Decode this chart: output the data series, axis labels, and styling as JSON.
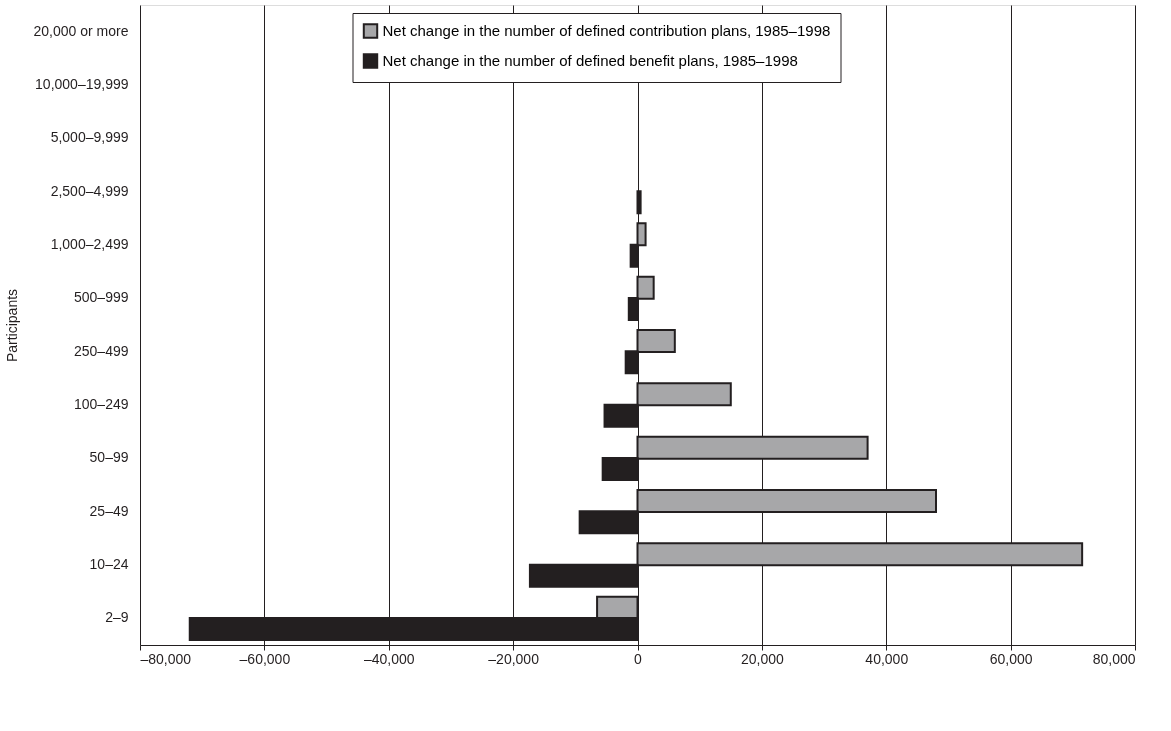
{
  "chart_data": {
    "type": "bar",
    "orientation": "horizontal",
    "ylabel": "Participants",
    "categories": [
      "20,000 or more",
      "10,000–19,999",
      "5,000–9,999",
      "2,500–4,999",
      "1,000–2,499",
      "500–999",
      "250–499",
      "100–249",
      "50–99",
      "25–49",
      "10–24",
      "2–9"
    ],
    "series": [
      {
        "name": "Net change in the number of defined contribution plans, 1985–1998",
        "color": "#a7a7a9",
        "values": [
          null,
          null,
          null,
          null,
          1300,
          2600,
          6000,
          15000,
          37000,
          48000,
          71500,
          -6500
        ]
      },
      {
        "name": "Net change in the number of defined benefit plans, 1985–1998",
        "color": "#231f20",
        "values": [
          null,
          null,
          null,
          500,
          -1100,
          -1400,
          -1900,
          -5300,
          -5600,
          -9300,
          -17300,
          -72000
        ]
      }
    ],
    "xlim": [
      -80000,
      80000
    ],
    "xticks": [
      {
        "value": -80000,
        "label": "–80,000"
      },
      {
        "value": -60000,
        "label": "–60,000"
      },
      {
        "value": -40000,
        "label": "–40,000"
      },
      {
        "value": -20000,
        "label": "–20,000"
      },
      0,
      {
        "value": 20000,
        "label": "20,000"
      },
      {
        "value": 40000,
        "label": "40,000"
      },
      {
        "value": 60000,
        "label": "60,000"
      },
      {
        "value": 80000,
        "label": "80,000"
      }
    ],
    "grid": "x",
    "legend": "top"
  }
}
